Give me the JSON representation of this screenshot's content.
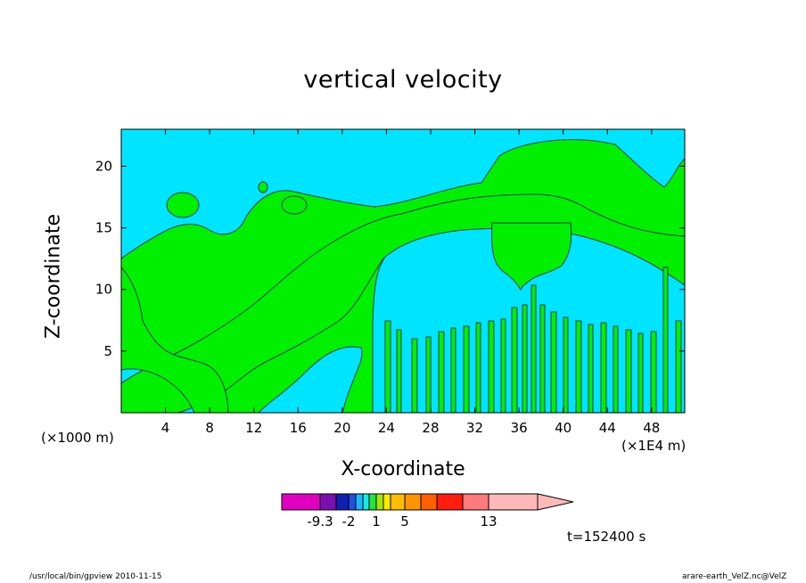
{
  "chart_data": {
    "type": "contour",
    "title": "vertical velocity",
    "xlabel": "X-coordinate",
    "ylabel": "Z-coordinate",
    "x_unit_left": "(×1000 m)",
    "x_unit_right": "(×1E4 m)",
    "xlim": [
      0,
      51
    ],
    "ylim": [
      0,
      23
    ],
    "x_ticks": [
      4,
      8,
      12,
      16,
      20,
      24,
      28,
      32,
      36,
      40,
      44,
      48
    ],
    "y_ticks": [
      5,
      10,
      15,
      20
    ],
    "fill_colors": {
      "negative": "#00e5ff",
      "positive_low": "#00f000"
    },
    "colorbar": {
      "labels": [
        "-9.3",
        "-2",
        "1",
        "5",
        "13"
      ],
      "colors": [
        "#e000c0",
        "#7a10b0",
        "#1020b0",
        "#2050e0",
        "#1bb8ff",
        "#18e8e8",
        "#22e63c",
        "#a6e600",
        "#ffe900",
        "#ffbd00",
        "#ff9400",
        "#ff6000",
        "#ff1d10",
        "#ff7a7a",
        "#ffb9b9"
      ],
      "extend": "max"
    },
    "time_label": "t=152400 s"
  },
  "footer": {
    "left": "/usr/local/bin/gpview   2010-11-15",
    "right": "arare-earth_VelZ.nc@VelZ"
  }
}
